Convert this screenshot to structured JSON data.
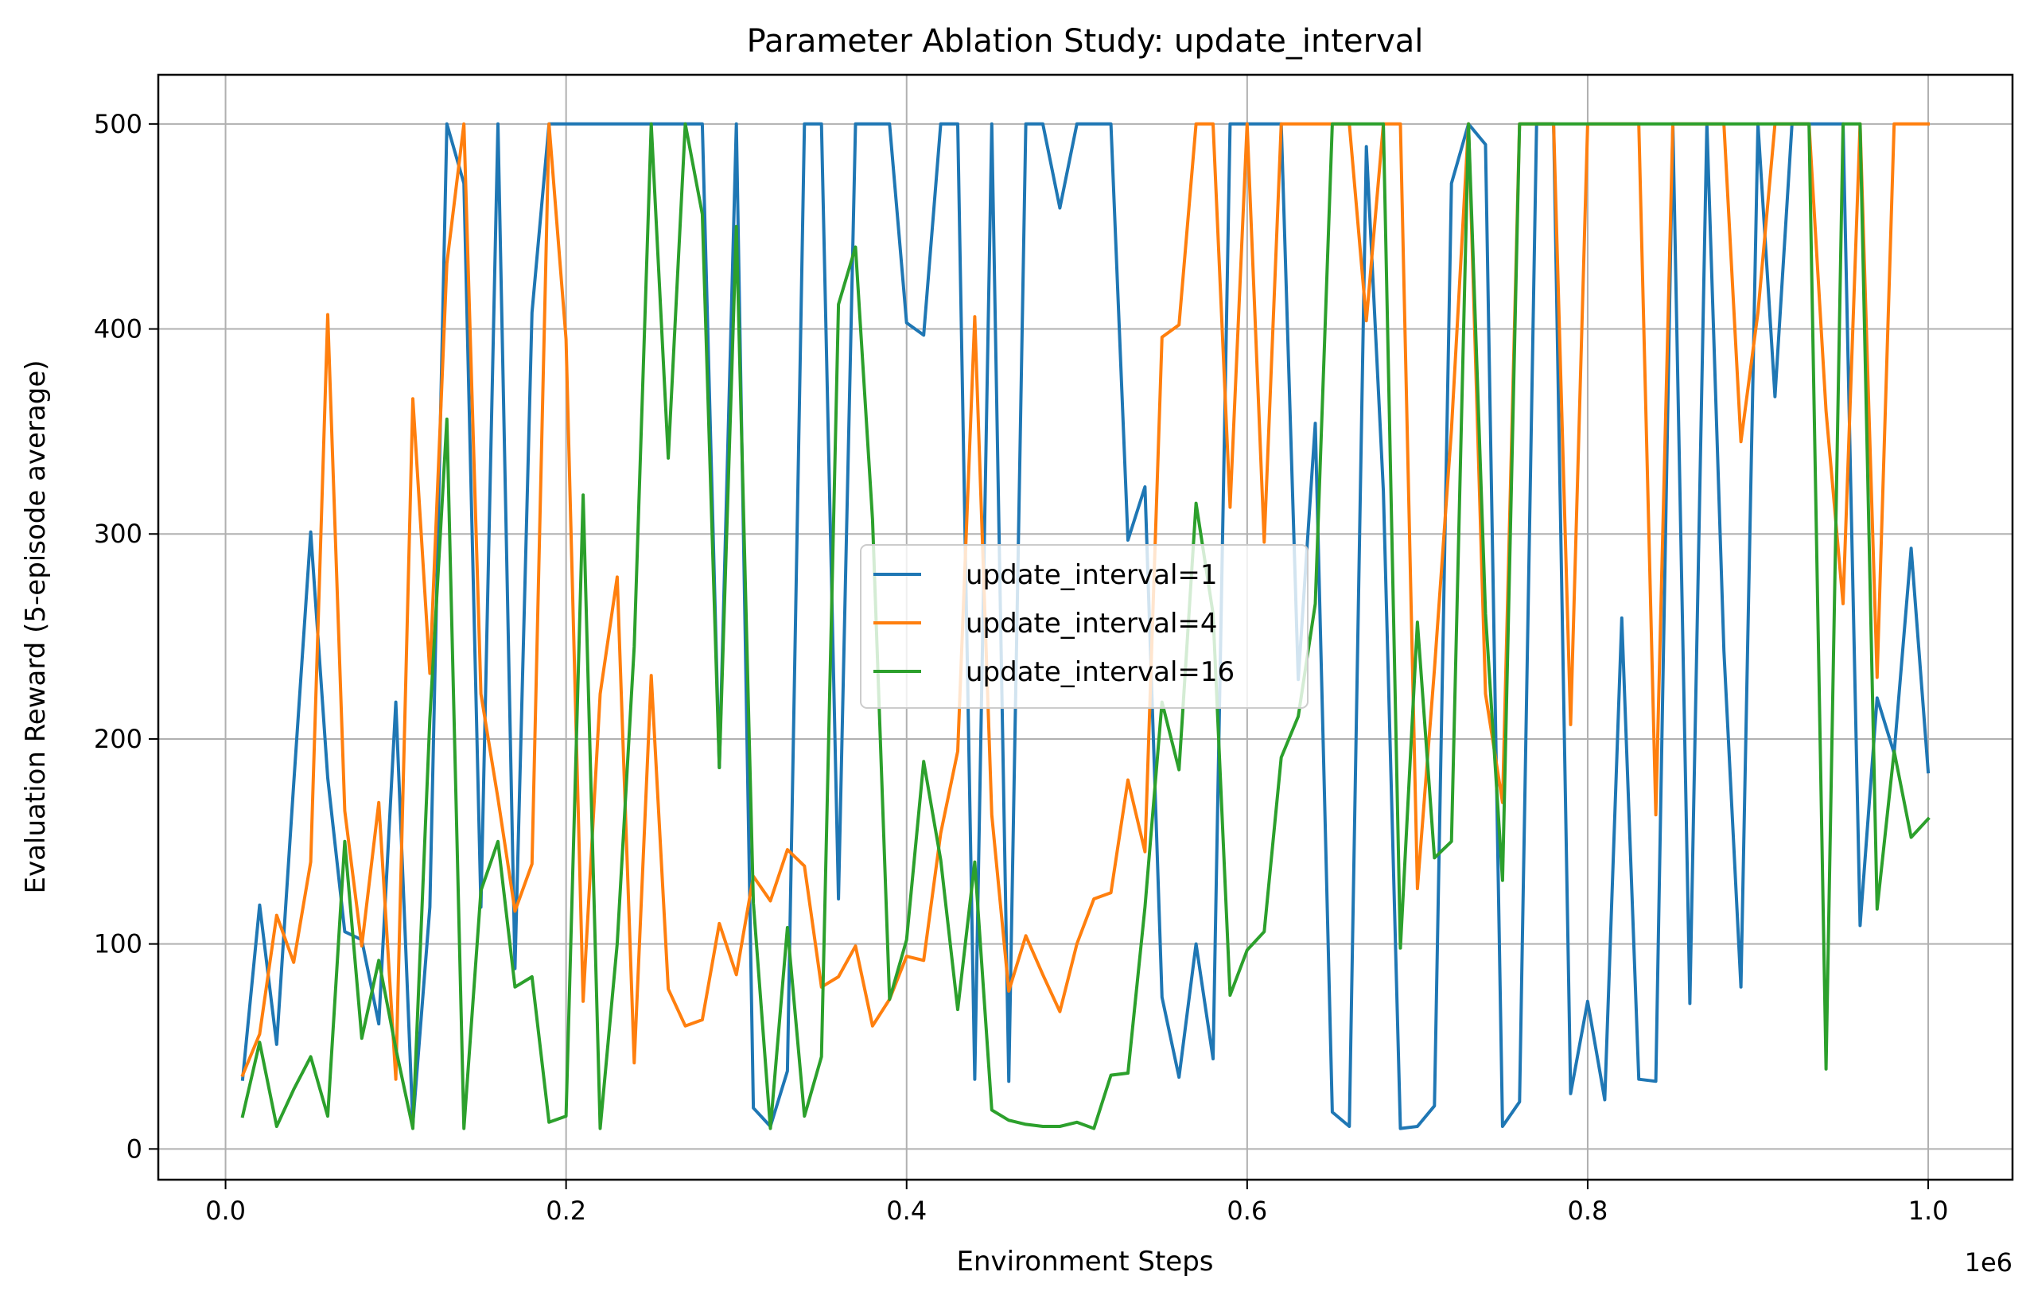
{
  "chart_data": {
    "type": "line",
    "title": "Parameter Ablation Study: update_interval",
    "xlabel": "Environment Steps",
    "ylabel": "Evaluation Reward (5-episode average)",
    "x_offset_label": "1e6",
    "xlim": [
      -0.0395,
      1.0495
    ],
    "ylim": [
      -15,
      524
    ],
    "x_ticks": [
      0.0,
      0.2,
      0.4,
      0.6,
      0.8,
      1.0
    ],
    "x_tick_labels": [
      "0.0",
      "0.2",
      "0.4",
      "0.6",
      "0.8",
      "1.0"
    ],
    "y_ticks": [
      0,
      100,
      200,
      300,
      400,
      500
    ],
    "y_tick_labels": [
      "0",
      "100",
      "200",
      "300",
      "400",
      "500"
    ],
    "grid": true,
    "legend_position": "center-right",
    "x": [
      0.01,
      0.02,
      0.03,
      0.04,
      0.05,
      0.06,
      0.07,
      0.08,
      0.09,
      0.1,
      0.11,
      0.12,
      0.13,
      0.14,
      0.15,
      0.16,
      0.17,
      0.18,
      0.19,
      0.2,
      0.21,
      0.22,
      0.23,
      0.24,
      0.25,
      0.26,
      0.27,
      0.28,
      0.29,
      0.3,
      0.31,
      0.32,
      0.33,
      0.34,
      0.35,
      0.36,
      0.37,
      0.38,
      0.39,
      0.4,
      0.41,
      0.42,
      0.43,
      0.44,
      0.45,
      0.46,
      0.47,
      0.48,
      0.49,
      0.5,
      0.51,
      0.52,
      0.53,
      0.54,
      0.55,
      0.56,
      0.57,
      0.58,
      0.59,
      0.6,
      0.61,
      0.62,
      0.63,
      0.64,
      0.65,
      0.66,
      0.67,
      0.68,
      0.69,
      0.7,
      0.71,
      0.72,
      0.73,
      0.74,
      0.75,
      0.76,
      0.77,
      0.78,
      0.79,
      0.8,
      0.81,
      0.82,
      0.83,
      0.84,
      0.85,
      0.86,
      0.87,
      0.88,
      0.89,
      0.9,
      0.91,
      0.92,
      0.93,
      0.94,
      0.95,
      0.96,
      0.97,
      0.98,
      0.99,
      1.0
    ],
    "series": [
      {
        "name": "update_interval=1",
        "color": "#1f77b4",
        "values": [
          34,
          119,
          51,
          178,
          301,
          181,
          106,
          102,
          61,
          218,
          12,
          118,
          500,
          471,
          118,
          500,
          88,
          408,
          500,
          500,
          500,
          500,
          500,
          500,
          500,
          500,
          500,
          500,
          186,
          500,
          20,
          11,
          38,
          500,
          500,
          122,
          500,
          500,
          500,
          403,
          397,
          500,
          500,
          34,
          500,
          33,
          500,
          500,
          459,
          500,
          500,
          500,
          297,
          323,
          74,
          35,
          100,
          44,
          500,
          500,
          500,
          500,
          229,
          354,
          18,
          11,
          489,
          321,
          10,
          11,
          21,
          471,
          500,
          490,
          11,
          23,
          500,
          500,
          27,
          72,
          24,
          259,
          34,
          33,
          500,
          71,
          500,
          243,
          79,
          500,
          367,
          500,
          500,
          500,
          500,
          109,
          220,
          193,
          293,
          184
        ]
      },
      {
        "name": "update_interval=4",
        "color": "#ff7f0e",
        "values": [
          36,
          56,
          114,
          91,
          140,
          407,
          165,
          99,
          169,
          34,
          366,
          232,
          432,
          500,
          222,
          171,
          116,
          139,
          500,
          395,
          72,
          222,
          279,
          42,
          231,
          78,
          60,
          63,
          110,
          85,
          133,
          121,
          146,
          138,
          79,
          84,
          99,
          60,
          73,
          94,
          92,
          154,
          194,
          406,
          163,
          77,
          104,
          85,
          67,
          100,
          122,
          125,
          180,
          145,
          396,
          402,
          500,
          500,
          313,
          500,
          296,
          500,
          500,
          500,
          500,
          500,
          404,
          500,
          500,
          127,
          234,
          351,
          500,
          222,
          169,
          500,
          500,
          500,
          207,
          500,
          500,
          500,
          500,
          163,
          500,
          500,
          500,
          500,
          345,
          408,
          500,
          500,
          500,
          360,
          266,
          500,
          230,
          500,
          500,
          500
        ]
      },
      {
        "name": "update_interval=16",
        "color": "#2ca02c",
        "values": [
          16,
          52,
          11,
          29,
          45,
          16,
          150,
          54,
          92,
          49,
          10,
          210,
          356,
          10,
          126,
          150,
          79,
          84,
          13,
          16,
          319,
          10,
          100,
          245,
          500,
          337,
          500,
          456,
          186,
          450,
          120,
          10,
          108,
          16,
          45,
          412,
          440,
          307,
          73,
          102,
          189,
          141,
          68,
          140,
          19,
          14,
          12,
          11,
          11,
          13,
          10,
          36,
          37,
          118,
          218,
          185,
          315,
          261,
          75,
          97,
          106,
          191,
          211,
          266,
          500,
          500,
          500,
          500,
          98,
          257,
          142,
          150,
          500,
          261,
          131,
          500,
          500,
          500,
          500,
          500,
          500,
          500,
          500,
          500,
          500,
          500,
          500,
          500,
          500,
          500,
          500,
          500,
          500,
          39,
          500,
          500,
          117,
          194,
          152,
          161
        ]
      }
    ]
  }
}
